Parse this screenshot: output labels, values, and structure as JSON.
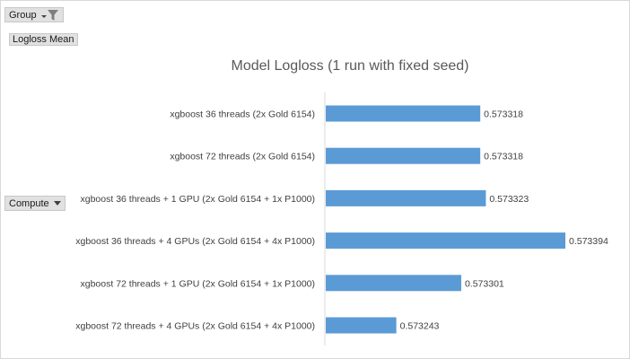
{
  "pivot": {
    "group_label": "Group",
    "value_field_label": "Logloss Mean",
    "compute_label": "Compute"
  },
  "chart_data": {
    "type": "bar",
    "orientation": "horizontal",
    "title": "Model Logloss (1 run with fixed seed)",
    "xlabel": "",
    "ylabel": "",
    "axis_min": 0.57318,
    "axis_max_hint": 0.5734,
    "categories": [
      "xgboost 36 threads (2x Gold 6154)",
      "xgboost 72 threads (2x Gold 6154)",
      "xgboost 36 threads + 1 GPU (2x Gold 6154 + 1x P1000)",
      "xgboost 36 threads + 4 GPUs (2x Gold 6154 + 4x P1000)",
      "xgboost 72 threads + 1 GPU (2x Gold 6154 + 1x P1000)",
      "xgboost 72 threads + 4 GPUs (2x Gold 6154 + 4x P1000)"
    ],
    "values": [
      0.573318,
      0.573318,
      0.573323,
      0.573394,
      0.573301,
      0.573243
    ],
    "value_labels": [
      "0.573318",
      "0.573318",
      "0.573323",
      "0.573394",
      "0.573301",
      "0.573243"
    ],
    "bar_color": "#5b9bd5",
    "gridlines": false,
    "legend": "none"
  }
}
